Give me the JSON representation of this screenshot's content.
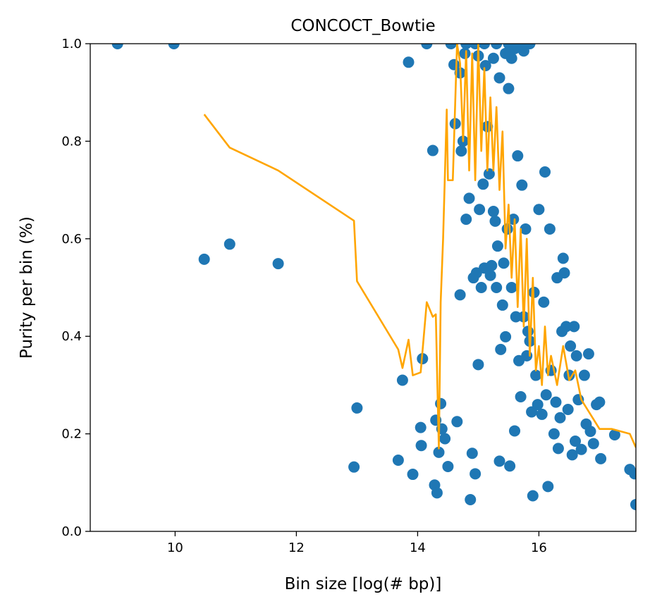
{
  "chart_data": {
    "type": "scatter",
    "title": "CONCOCT_Bowtie",
    "xlabel": "Bin size [log(# bp)]",
    "ylabel": "Purity per bin (%)",
    "xlim": [
      8.6,
      17.6
    ],
    "ylim": [
      0.0,
      1.0
    ],
    "xticks": [
      10,
      12,
      14,
      16
    ],
    "xtick_labels": [
      "10",
      "12",
      "14",
      "16"
    ],
    "yticks": [
      0.0,
      0.2,
      0.4,
      0.6,
      0.8,
      1.0
    ],
    "ytick_labels": [
      "0.0",
      "0.2",
      "0.4",
      "0.6",
      "0.8",
      "1.0"
    ],
    "grid": false,
    "colors": {
      "points": "#1f77b4",
      "line": "#ffa500"
    },
    "series": [
      {
        "kind": "scatter",
        "points": [
          [
            9.05,
            1.0
          ],
          [
            9.98,
            1.0
          ],
          [
            10.48,
            0.558
          ],
          [
            10.9,
            0.589
          ],
          [
            11.7,
            0.549
          ],
          [
            12.95,
            0.132
          ],
          [
            13.0,
            0.253
          ],
          [
            13.68,
            0.146
          ],
          [
            13.75,
            0.31
          ],
          [
            13.85,
            0.962
          ],
          [
            13.92,
            0.117
          ],
          [
            14.05,
            0.213
          ],
          [
            14.06,
            0.176
          ],
          [
            14.08,
            0.354
          ],
          [
            14.15,
            1.0
          ],
          [
            14.25,
            0.781
          ],
          [
            14.28,
            0.095
          ],
          [
            14.3,
            0.228
          ],
          [
            14.32,
            0.079
          ],
          [
            14.35,
            0.162
          ],
          [
            14.38,
            0.262
          ],
          [
            14.4,
            0.21
          ],
          [
            14.45,
            0.19
          ],
          [
            14.5,
            0.133
          ],
          [
            14.55,
            1.0
          ],
          [
            14.6,
            0.957
          ],
          [
            14.62,
            0.836
          ],
          [
            14.65,
            0.225
          ],
          [
            14.7,
            0.485
          ],
          [
            14.72,
            0.78
          ],
          [
            14.75,
            0.8
          ],
          [
            14.78,
            0.98
          ],
          [
            14.8,
            0.64
          ],
          [
            14.85,
            0.683
          ],
          [
            14.87,
            0.065
          ],
          [
            14.9,
            0.16
          ],
          [
            14.92,
            0.52
          ],
          [
            14.95,
            0.118
          ],
          [
            14.97,
            0.53
          ],
          [
            15.0,
            0.342
          ],
          [
            15.02,
            0.66
          ],
          [
            15.05,
            0.5
          ],
          [
            15.08,
            0.712
          ],
          [
            15.1,
            0.54
          ],
          [
            15.12,
            0.955
          ],
          [
            15.15,
            0.83
          ],
          [
            15.18,
            0.733
          ],
          [
            15.2,
            0.525
          ],
          [
            15.22,
            0.545
          ],
          [
            15.25,
            0.656
          ],
          [
            15.28,
            0.636
          ],
          [
            15.3,
            0.5
          ],
          [
            15.32,
            0.585
          ],
          [
            15.35,
            0.144
          ],
          [
            15.37,
            0.373
          ],
          [
            15.4,
            0.464
          ],
          [
            15.42,
            0.55
          ],
          [
            15.45,
            0.399
          ],
          [
            15.48,
            0.62
          ],
          [
            15.5,
            0.908
          ],
          [
            15.52,
            0.134
          ],
          [
            15.55,
            0.5
          ],
          [
            15.58,
            0.64
          ],
          [
            15.6,
            0.206
          ],
          [
            15.62,
            0.44
          ],
          [
            15.65,
            0.77
          ],
          [
            15.67,
            0.35
          ],
          [
            15.7,
            0.276
          ],
          [
            15.72,
            0.71
          ],
          [
            15.75,
            0.44
          ],
          [
            15.78,
            0.62
          ],
          [
            15.8,
            0.36
          ],
          [
            15.82,
            0.41
          ],
          [
            15.85,
            0.39
          ],
          [
            15.88,
            0.245
          ],
          [
            15.9,
            0.073
          ],
          [
            15.92,
            0.49
          ],
          [
            15.95,
            0.32
          ],
          [
            15.98,
            0.26
          ],
          [
            16.0,
            0.66
          ],
          [
            16.05,
            0.24
          ],
          [
            16.08,
            0.47
          ],
          [
            16.1,
            0.737
          ],
          [
            16.12,
            0.28
          ],
          [
            16.15,
            0.092
          ],
          [
            16.18,
            0.62
          ],
          [
            16.2,
            0.33
          ],
          [
            16.25,
            0.2
          ],
          [
            16.28,
            0.265
          ],
          [
            16.3,
            0.52
          ],
          [
            16.32,
            0.17
          ],
          [
            16.35,
            0.233
          ],
          [
            16.38,
            0.41
          ],
          [
            16.4,
            0.56
          ],
          [
            16.42,
            0.53
          ],
          [
            16.45,
            0.42
          ],
          [
            16.48,
            0.25
          ],
          [
            16.5,
            0.32
          ],
          [
            16.52,
            0.38
          ],
          [
            16.55,
            0.157
          ],
          [
            16.58,
            0.42
          ],
          [
            16.6,
            0.185
          ],
          [
            16.62,
            0.36
          ],
          [
            16.65,
            0.27
          ],
          [
            16.7,
            0.168
          ],
          [
            16.75,
            0.32
          ],
          [
            16.78,
            0.22
          ],
          [
            16.82,
            0.364
          ],
          [
            16.85,
            0.205
          ],
          [
            16.9,
            0.18
          ],
          [
            16.95,
            0.26
          ],
          [
            17.0,
            0.265
          ],
          [
            17.02,
            0.149
          ],
          [
            17.25,
            0.198
          ],
          [
            17.5,
            0.127
          ],
          [
            17.58,
            0.118
          ],
          [
            17.6,
            0.055
          ],
          [
            14.8,
            1.0
          ],
          [
            14.95,
            1.0
          ],
          [
            15.1,
            1.0
          ],
          [
            15.3,
            1.0
          ],
          [
            15.5,
            1.0
          ],
          [
            15.7,
            1.0
          ],
          [
            15.85,
            1.0
          ],
          [
            15.0,
            0.975
          ],
          [
            15.25,
            0.97
          ],
          [
            15.45,
            0.98
          ],
          [
            15.6,
            0.99
          ],
          [
            14.7,
            0.94
          ],
          [
            15.35,
            0.93
          ],
          [
            15.55,
            0.97
          ],
          [
            15.75,
            0.985
          ]
        ]
      },
      {
        "kind": "line",
        "points": [
          [
            10.48,
            0.855
          ],
          [
            10.9,
            0.787
          ],
          [
            11.7,
            0.74
          ],
          [
            12.95,
            0.637
          ],
          [
            13.0,
            0.513
          ],
          [
            13.68,
            0.373
          ],
          [
            13.75,
            0.335
          ],
          [
            13.85,
            0.393
          ],
          [
            13.92,
            0.32
          ],
          [
            14.05,
            0.326
          ],
          [
            14.15,
            0.47
          ],
          [
            14.25,
            0.44
          ],
          [
            14.3,
            0.445
          ],
          [
            14.32,
            0.33
          ],
          [
            14.35,
            0.17
          ],
          [
            14.38,
            0.47
          ],
          [
            14.42,
            0.6
          ],
          [
            14.48,
            0.865
          ],
          [
            14.5,
            0.72
          ],
          [
            14.58,
            0.72
          ],
          [
            14.65,
            1.0
          ],
          [
            14.7,
            0.96
          ],
          [
            14.75,
            0.8
          ],
          [
            14.8,
            0.985
          ],
          [
            14.85,
            0.74
          ],
          [
            14.9,
            0.98
          ],
          [
            14.95,
            0.72
          ],
          [
            15.0,
            1.0
          ],
          [
            15.05,
            0.78
          ],
          [
            15.1,
            0.95
          ],
          [
            15.15,
            0.74
          ],
          [
            15.2,
            0.89
          ],
          [
            15.25,
            0.74
          ],
          [
            15.3,
            0.87
          ],
          [
            15.35,
            0.7
          ],
          [
            15.4,
            0.82
          ],
          [
            15.45,
            0.58
          ],
          [
            15.5,
            0.67
          ],
          [
            15.55,
            0.52
          ],
          [
            15.6,
            0.64
          ],
          [
            15.65,
            0.46
          ],
          [
            15.7,
            0.62
          ],
          [
            15.75,
            0.42
          ],
          [
            15.8,
            0.6
          ],
          [
            15.85,
            0.36
          ],
          [
            15.9,
            0.52
          ],
          [
            15.95,
            0.33
          ],
          [
            16.0,
            0.38
          ],
          [
            16.05,
            0.3
          ],
          [
            16.1,
            0.42
          ],
          [
            16.15,
            0.32
          ],
          [
            16.2,
            0.36
          ],
          [
            16.3,
            0.3
          ],
          [
            16.4,
            0.38
          ],
          [
            16.5,
            0.31
          ],
          [
            16.6,
            0.33
          ],
          [
            16.7,
            0.27
          ],
          [
            16.8,
            0.25
          ],
          [
            16.9,
            0.23
          ],
          [
            17.0,
            0.21
          ],
          [
            17.2,
            0.21
          ],
          [
            17.5,
            0.2
          ],
          [
            17.6,
            0.172
          ]
        ]
      }
    ]
  }
}
